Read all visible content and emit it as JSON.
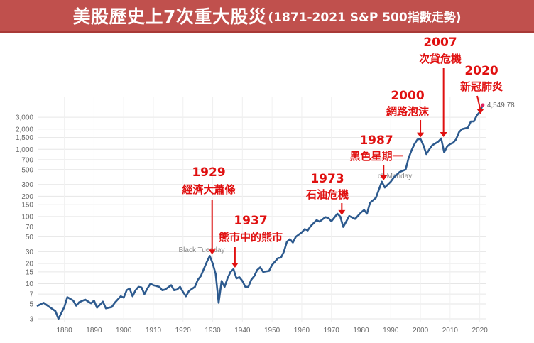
{
  "banner": {
    "title_main": "美股歷史上7次重大股災",
    "title_sub": "(1871-2021 S&P 500指數走勢)"
  },
  "colors": {
    "line": "#2d5a8e",
    "annotation": "#e01010",
    "banner": "#c0504d",
    "grid": "#e6e6e6"
  },
  "chart_data": {
    "type": "line",
    "title": "美股歷史上7次重大股災 (1871-2021 S&P 500指數走勢)",
    "yscale": "log",
    "xlim": [
      1871,
      2022
    ],
    "ylim": [
      3,
      4549.78
    ],
    "x_ticks": [
      1880,
      1890,
      1900,
      1910,
      1920,
      1930,
      1940,
      1950,
      1960,
      1970,
      1980,
      1990,
      2000,
      2010,
      2020
    ],
    "y_ticks": [
      3,
      5,
      7,
      10,
      15,
      20,
      30,
      50,
      70,
      100,
      150,
      200,
      300,
      500,
      700,
      1000,
      1500,
      2000,
      3000
    ],
    "y_tick_labels": [
      "3",
      "5",
      "7",
      "10",
      "15",
      "20",
      "30",
      "50",
      "70",
      "100",
      "150",
      "200",
      "300",
      "500",
      "700",
      "1,000",
      "1,500",
      "2,000",
      "3,000"
    ],
    "grid": true,
    "last_value_label": "4,549.78",
    "faint_labels": [
      "Black Tuesday",
      "ck Monday"
    ],
    "series": [
      {
        "x": [
          1871,
          1873,
          1875,
          1877,
          1878,
          1880,
          1881,
          1883,
          1884,
          1885,
          1887,
          1889,
          1890,
          1891,
          1893,
          1894,
          1896,
          1897,
          1899,
          1900,
          1901,
          1902,
          1903,
          1904,
          1905,
          1906,
          1907,
          1908,
          1909,
          1910,
          1912,
          1913,
          1914,
          1916,
          1917,
          1918,
          1919,
          1920,
          1921,
          1922,
          1924,
          1925,
          1926,
          1927,
          1928,
          1929,
          1930,
          1931,
          1932,
          1933,
          1934,
          1935,
          1936,
          1937,
          1938,
          1939,
          1940,
          1941,
          1942,
          1943,
          1944,
          1945,
          1946,
          1947,
          1949,
          1950,
          1952,
          1953,
          1954,
          1955,
          1956,
          1957,
          1958,
          1960,
          1961,
          1962,
          1963,
          1965,
          1966,
          1968,
          1969,
          1970,
          1972,
          1973,
          1974,
          1976,
          1978,
          1980,
          1981,
          1982,
          1983,
          1985,
          1987,
          1988,
          1990,
          1991,
          1993,
          1995,
          1996,
          1997,
          1998,
          1999,
          2000,
          2001,
          2002,
          2003,
          2004,
          2006,
          2007,
          2008,
          2009,
          2010,
          2011,
          2012,
          2013,
          2014,
          2016,
          2017,
          2018,
          2019,
          2020,
          2021
        ],
        "values": [
          4.7,
          5.2,
          4.5,
          3.9,
          3.0,
          4.5,
          6.3,
          5.6,
          4.7,
          5.3,
          5.8,
          5.1,
          5.6,
          4.4,
          5.4,
          4.3,
          4.5,
          5.2,
          6.5,
          6.2,
          8.0,
          8.5,
          6.5,
          8.0,
          9.0,
          8.8,
          7.0,
          8.5,
          10.0,
          9.5,
          9.0,
          8.0,
          8.2,
          9.5,
          8.0,
          8.2,
          9.0,
          7.5,
          6.5,
          7.8,
          9.0,
          11.5,
          13.0,
          16.5,
          21.0,
          26.0,
          20.0,
          14.0,
          5.2,
          11.0,
          9.0,
          12.0,
          15.0,
          16.5,
          12.0,
          12.5,
          11.0,
          9.0,
          9.0,
          11.5,
          13.0,
          16.0,
          17.5,
          15.0,
          15.5,
          19.0,
          24.0,
          24.5,
          30.0,
          42.0,
          46.0,
          41.0,
          50.0,
          58.0,
          65.0,
          62.0,
          72.0,
          88.0,
          84.0,
          98.0,
          95.0,
          85.0,
          110.0,
          100.0,
          70.0,
          102.0,
          92.0,
          115.0,
          125.0,
          110.0,
          160.0,
          190.0,
          330.0,
          270.0,
          330.0,
          380.0,
          460.0,
          500.0,
          740.0,
          960.0,
          1200.0,
          1400.0,
          1430.0,
          1150.0,
          850.0,
          1000.0,
          1150.0,
          1300.0,
          1450.0,
          900.0,
          1100.0,
          1200.0,
          1250.0,
          1400.0,
          1800.0,
          2000.0,
          2100.0,
          2600.0,
          2600.0,
          3200.0,
          3600.0,
          4549.78
        ]
      }
    ],
    "annotations": [
      {
        "year": "1929",
        "label": "經濟大蕭條",
        "x": 1929.8,
        "y": 26.0
      },
      {
        "year": "1937",
        "label": "熊市中的熊市",
        "x": 1937.5,
        "y": 16.5
      },
      {
        "year": "1973",
        "label": "石油危機",
        "x": 1973.5,
        "y": 100.0
      },
      {
        "year": "1987",
        "label": "黑色星期一",
        "x": 1987.6,
        "y": 330.0
      },
      {
        "year": "2000",
        "label": "網路泡沫",
        "x": 2000.0,
        "y": 1430.0
      },
      {
        "year": "2007",
        "label": "次貸危機",
        "x": 2007.8,
        "y": 1450.0
      },
      {
        "year": "2020",
        "label": "新冠肺炎",
        "x": 2020.2,
        "y": 3200.0
      }
    ]
  }
}
